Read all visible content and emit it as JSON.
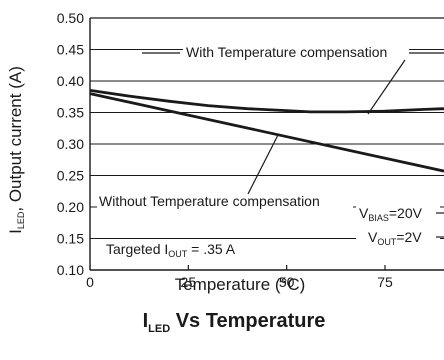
{
  "chart_data": {
    "type": "line",
    "title_main": "I",
    "title_sub": "LED",
    "title_rest": " Vs Temperature",
    "xlabel": "Temperature (°C)",
    "ylabel_main": "I",
    "ylabel_sub": "LED",
    "ylabel_rest": ", Output current (A)",
    "xlim": [
      0,
      90
    ],
    "ylim": [
      0.1,
      0.5
    ],
    "xticks": [
      0,
      25,
      50,
      75
    ],
    "xtick_labels": [
      "0",
      "25",
      "50",
      "75"
    ],
    "yticks": [
      0.1,
      0.15,
      0.2,
      0.25,
      0.3,
      0.35,
      0.4,
      0.45,
      0.5
    ],
    "ytick_labels": [
      "0.10",
      "0.15",
      "0.20",
      "0.25",
      "0.30",
      "0.35",
      "0.40",
      "0.45",
      "0.50"
    ],
    "grid": "horizontal",
    "series": [
      {
        "x": [
          0,
          10,
          20,
          30,
          40,
          50,
          56,
          65,
          75,
          85,
          90
        ],
        "y": [
          0.385,
          0.376,
          0.368,
          0.361,
          0.356,
          0.353,
          0.351,
          0.351,
          0.352,
          0.355,
          0.356
        ]
      },
      {
        "x": [
          0,
          90
        ],
        "y": [
          0.38,
          0.257
        ]
      }
    ],
    "annotations": {
      "with_comp": "With Temperature compensation",
      "without_comp": "Without Temperature compensation",
      "target_main": "Targeted I",
      "target_sub": "OUT",
      "target_rest": " = .35 A",
      "vbias_main": "V",
      "vbias_sub": "BIAS",
      "vbias_rest": "=20V",
      "vout_main": "V",
      "vout_sub": "OUT",
      "vout_rest": "=2V"
    }
  }
}
